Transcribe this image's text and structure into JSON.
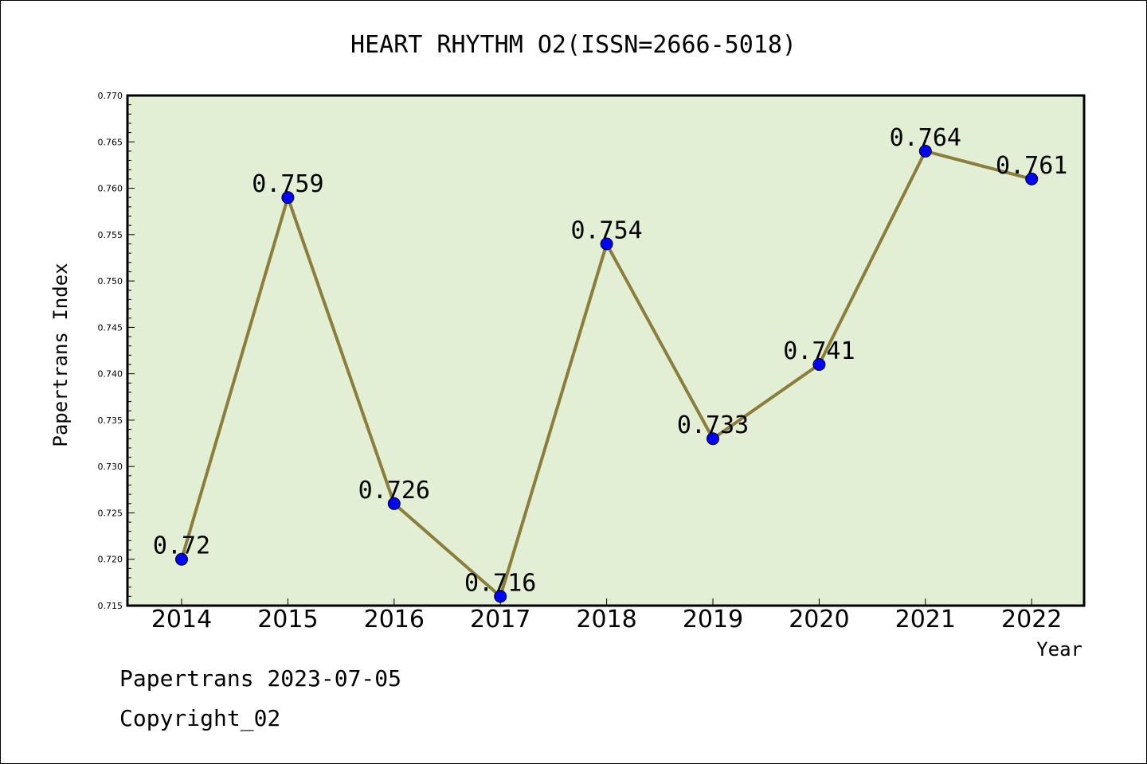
{
  "chart_data": {
    "type": "line",
    "title": "HEART RHYTHM O2(ISSN=2666-5018)",
    "xlabel": "Year",
    "ylabel": "Papertrans Index",
    "categories": [
      "2014",
      "2015",
      "2016",
      "2017",
      "2018",
      "2019",
      "2020",
      "2021",
      "2022"
    ],
    "series": [
      {
        "values": [
          0.72,
          0.759,
          0.726,
          0.716,
          0.754,
          0.733,
          0.741,
          0.764,
          0.761
        ],
        "labels": [
          "0.72",
          "0.759",
          "0.726",
          "0.716",
          "0.754",
          "0.733",
          "0.741",
          "0.764",
          "0.761"
        ]
      }
    ],
    "ylim": [
      0.715,
      0.77
    ],
    "yticks": [
      "0.715",
      "0.720",
      "0.725",
      "0.730",
      "0.735",
      "0.740",
      "0.745",
      "0.750",
      "0.755",
      "0.760",
      "0.765",
      "0.770"
    ],
    "grid": false,
    "colors": {
      "plot_bg": "#e2efd4",
      "line": "#8b7d3a",
      "marker": "#0000ff"
    }
  },
  "footer": {
    "line1": "Papertrans 2023-07-05",
    "line2": "Copyright_02"
  }
}
